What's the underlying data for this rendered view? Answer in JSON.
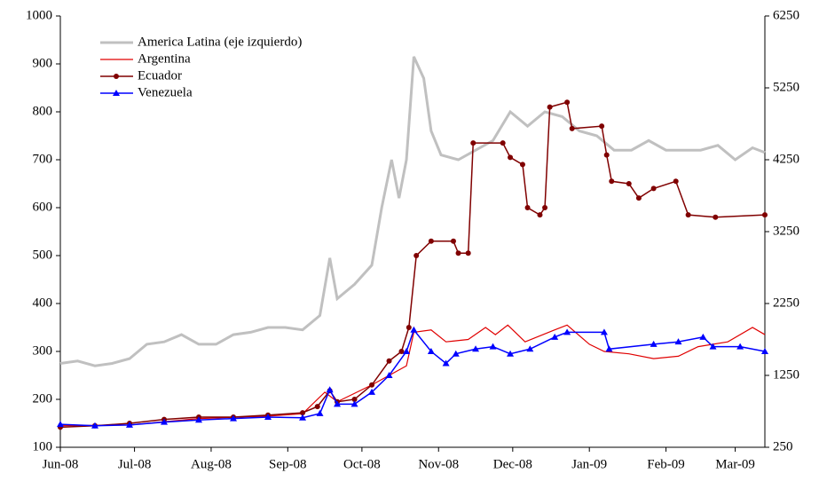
{
  "chart_data": {
    "type": "line",
    "xlim": [
      0,
      285
    ],
    "xticks": [
      {
        "value": 0,
        "label": "Jun-08"
      },
      {
        "value": 30,
        "label": "Jul-08"
      },
      {
        "value": 61,
        "label": "Aug-08"
      },
      {
        "value": 92,
        "label": "Sep-08"
      },
      {
        "value": 122,
        "label": "Oct-08"
      },
      {
        "value": 153,
        "label": "Nov-08"
      },
      {
        "value": 183,
        "label": "Dec-08"
      },
      {
        "value": 214,
        "label": "Jan-09"
      },
      {
        "value": 245,
        "label": "Feb-09"
      },
      {
        "value": 273,
        "label": "Mar-09"
      }
    ],
    "ylim": [
      100,
      1000
    ],
    "yticks": [
      100,
      200,
      300,
      400,
      500,
      600,
      700,
      800,
      900,
      1000
    ],
    "y2lim": [
      250,
      6250
    ],
    "y2ticks": [
      250,
      1250,
      2250,
      3250,
      4250,
      5250,
      6250
    ],
    "legend": "upper left",
    "series": [
      {
        "name": "America Latina (eje izquierdo)",
        "color": "#c0c0c0",
        "marker": "none",
        "x": [
          0,
          7,
          14,
          21,
          28,
          35,
          42,
          49,
          56,
          63,
          70,
          77,
          84,
          91,
          98,
          105,
          109,
          112,
          119,
          126,
          130,
          134,
          137,
          140,
          143,
          147,
          150,
          154,
          161,
          168,
          175,
          182,
          189,
          196,
          203,
          210,
          217,
          224,
          231,
          238,
          245,
          252,
          259,
          266,
          273,
          280,
          285
        ],
        "values": [
          275,
          280,
          270,
          275,
          285,
          315,
          320,
          335,
          315,
          315,
          335,
          340,
          350,
          350,
          345,
          375,
          495,
          410,
          440,
          480,
          600,
          700,
          620,
          700,
          915,
          870,
          760,
          710,
          700,
          720,
          740,
          800,
          770,
          800,
          790,
          760,
          750,
          720,
          720,
          740,
          720,
          720,
          720,
          730,
          700,
          725,
          715
        ]
      },
      {
        "name": "Argentina",
        "color": "#e00000",
        "marker": "none",
        "axis": "y2",
        "x": [
          0,
          28,
          56,
          84,
          98,
          107,
          112,
          126,
          133,
          140,
          143,
          150,
          156,
          165,
          172,
          176,
          181,
          188,
          200,
          205,
          214,
          220,
          230,
          240,
          250,
          258,
          270,
          280,
          285
        ],
        "values": [
          550,
          560,
          650,
          683,
          717,
          1017,
          883,
          1117,
          1250,
          1383,
          1850,
          1883,
          1717,
          1750,
          1917,
          1817,
          1950,
          1717,
          1883,
          1950,
          1683,
          1583,
          1550,
          1483,
          1517,
          1650,
          1717,
          1917,
          1817
        ]
      },
      {
        "name": "Ecuador",
        "color": "#800000",
        "marker": "circle",
        "axis": "y2",
        "x": [
          0,
          14,
          28,
          42,
          56,
          70,
          84,
          98,
          104,
          109,
          112,
          119,
          126,
          133,
          138,
          141,
          144,
          150,
          159,
          161,
          165,
          167,
          179,
          182,
          187,
          189,
          194,
          196,
          198,
          205,
          207,
          219,
          221,
          223,
          230,
          234,
          240,
          249,
          254,
          265,
          285
        ],
        "values": [
          530,
          550,
          583,
          637,
          670,
          670,
          697,
          730,
          817,
          1037,
          883,
          917,
          1117,
          1450,
          1583,
          1917,
          2917,
          3117,
          3117,
          2950,
          2950,
          4483,
          4483,
          4283,
          4183,
          3583,
          3483,
          3583,
          4983,
          5050,
          4683,
          4717,
          4317,
          3950,
          3917,
          3717,
          3850,
          3950,
          3483,
          3450,
          3483
        ]
      },
      {
        "name": "Venezuela",
        "color": "#0000ff",
        "marker": "triangle",
        "axis": "y2",
        "x": [
          0,
          14,
          28,
          42,
          56,
          70,
          84,
          98,
          105,
          109,
          112,
          119,
          126,
          133,
          140,
          143,
          150,
          156,
          160,
          168,
          175,
          182,
          190,
          200,
          205,
          220,
          222,
          240,
          250,
          260,
          264,
          275,
          285
        ],
        "values": [
          570,
          550,
          560,
          600,
          630,
          650,
          670,
          660,
          720,
          1050,
          850,
          850,
          1017,
          1250,
          1583,
          1883,
          1583,
          1417,
          1550,
          1617,
          1650,
          1550,
          1617,
          1783,
          1850,
          1850,
          1617,
          1683,
          1717,
          1783,
          1650,
          1650,
          1583
        ]
      }
    ]
  }
}
